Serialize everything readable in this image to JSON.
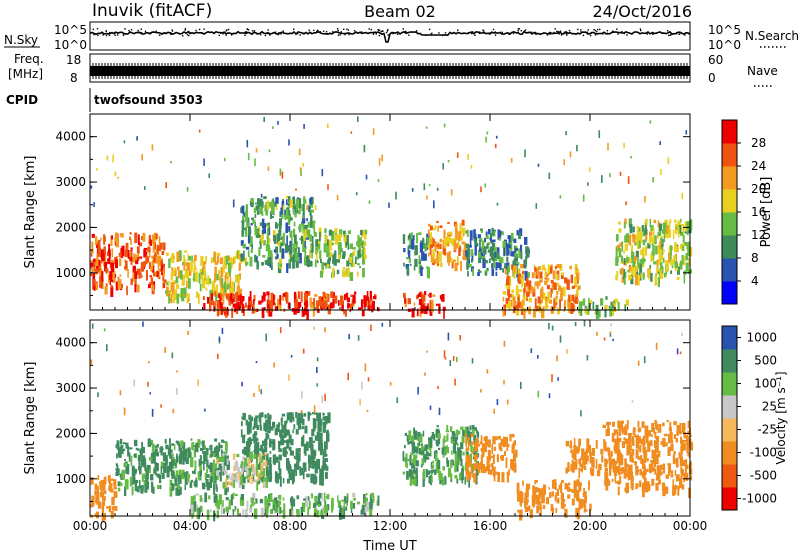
{
  "header": {
    "station": "Inuvik (fitACF)",
    "beam": "Beam 02",
    "date": "24/Oct/2016"
  },
  "noise_panel": {
    "left_label": "N.Sky",
    "right_label": "N.Search",
    "left_ticks": [
      "10^5",
      "10^0"
    ],
    "right_ticks": [
      "10^5",
      "10^0"
    ]
  },
  "freq_panel": {
    "left_label_1": "Freq.",
    "left_label_2": "[MHz]",
    "right_label": "Nave",
    "left_ticks": [
      "18",
      "8"
    ],
    "right_ticks": [
      "60",
      "0"
    ]
  },
  "cpid_panel": {
    "label": "CPID",
    "program": "twofsound 3503"
  },
  "colors": {
    "power": [
      "#0000ff",
      "#2a52b0",
      "#3d8a5a",
      "#66bb44",
      "#e8d020",
      "#f59a20",
      "#ee5510",
      "#ee0000"
    ],
    "velocity": [
      "#ee0000",
      "#ee5a10",
      "#f08c20",
      "#f6b85c",
      "#c8c8c8",
      "#66bb44",
      "#3f8a5e",
      "#2a52b0"
    ],
    "ground_scatter": "#c8c8c8"
  },
  "chart_data": [
    {
      "type": "heatmap",
      "name": "Power",
      "xlabel": "",
      "ylabel": "Slant Range [km]",
      "x_ticks": [
        "00:00",
        "04:00",
        "08:00",
        "12:00",
        "16:00",
        "20:00",
        "00:00"
      ],
      "y_ticks": [
        "1000",
        "2000",
        "3000",
        "4000"
      ],
      "xlim": [
        0,
        24
      ],
      "ylim": [
        180,
        4500
      ],
      "colorbar": {
        "label": "Power [dB]",
        "ticks": [
          "4",
          "8",
          "12",
          "16",
          "20",
          "24",
          "28"
        ],
        "range": [
          0,
          32
        ]
      },
      "regions": [
        {
          "t": [
            0.0,
            3.0
          ],
          "r": [
            700,
            1900
          ],
          "v": 26
        },
        {
          "t": [
            3.0,
            6.0
          ],
          "r": [
            500,
            1500
          ],
          "v": 18
        },
        {
          "t": [
            4.5,
            11.5
          ],
          "r": [
            180,
            600
          ],
          "v": 28
        },
        {
          "t": [
            6.0,
            9.0
          ],
          "r": [
            1200,
            2700
          ],
          "v": 12
        },
        {
          "t": [
            9.0,
            11.0
          ],
          "r": [
            1000,
            2000
          ],
          "v": 14
        },
        {
          "t": [
            12.5,
            13.5
          ],
          "r": [
            1100,
            1900
          ],
          "v": 10
        },
        {
          "t": [
            13.5,
            15.0
          ],
          "r": [
            1200,
            2200
          ],
          "v": 22
        },
        {
          "t": [
            12.5,
            14.2
          ],
          "r": [
            180,
            600
          ],
          "v": 28
        },
        {
          "t": [
            15.0,
            17.5
          ],
          "r": [
            1000,
            2000
          ],
          "v": 9
        },
        {
          "t": [
            16.5,
            19.5
          ],
          "r": [
            200,
            1200
          ],
          "v": 22
        },
        {
          "t": [
            19.5,
            21.5
          ],
          "r": [
            180,
            500
          ],
          "v": 14
        },
        {
          "t": [
            21.0,
            24.0
          ],
          "r": [
            900,
            2200
          ],
          "v": 16
        }
      ]
    },
    {
      "type": "heatmap",
      "name": "Velocity",
      "xlabel": "Time UT",
      "ylabel": "Slant Range [km]",
      "x_ticks": [
        "00:00",
        "04:00",
        "08:00",
        "12:00",
        "16:00",
        "20:00",
        "00:00"
      ],
      "y_ticks": [
        "1000",
        "2000",
        "3000",
        "4000"
      ],
      "xlim": [
        0,
        24
      ],
      "ylim": [
        180,
        4500
      ],
      "colorbar": {
        "label": "Velocity [m s⁻¹]",
        "ticks": [
          "-1000",
          "-500",
          "-100",
          "-25",
          "25",
          "100",
          "500",
          "1000"
        ]
      },
      "regions": [
        {
          "t": [
            0.0,
            1.0
          ],
          "r": [
            200,
            1100
          ],
          "v": -300
        },
        {
          "t": [
            1.0,
            5.5
          ],
          "r": [
            800,
            1900
          ],
          "v": 150
        },
        {
          "t": [
            4.0,
            11.5
          ],
          "r": [
            300,
            700
          ],
          "v": 80
        },
        {
          "t": [
            6.0,
            9.5
          ],
          "r": [
            1000,
            2500
          ],
          "v": 200
        },
        {
          "t": [
            5.0,
            7.0
          ],
          "r": [
            900,
            1600
          ],
          "v": 0
        },
        {
          "t": [
            12.5,
            15.5
          ],
          "r": [
            1000,
            2200
          ],
          "v": 120
        },
        {
          "t": [
            15.0,
            17.0
          ],
          "r": [
            1100,
            2000
          ],
          "v": -200
        },
        {
          "t": [
            17.0,
            20.0
          ],
          "r": [
            300,
            1000
          ],
          "v": -300
        },
        {
          "t": [
            19.0,
            20.5
          ],
          "r": [
            1200,
            1900
          ],
          "v": -200
        },
        {
          "t": [
            20.5,
            24.0
          ],
          "r": [
            800,
            2300
          ],
          "v": -300
        }
      ]
    }
  ]
}
